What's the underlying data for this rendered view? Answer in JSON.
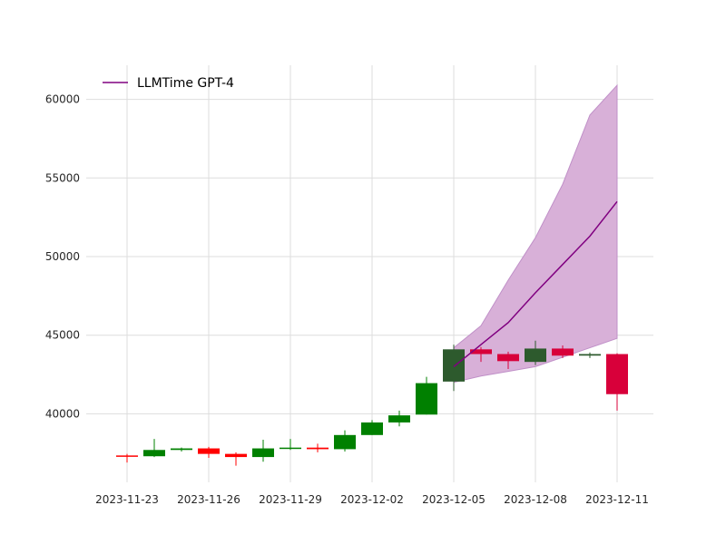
{
  "chart_data": {
    "type": "candlestick",
    "x_ticks": [
      "2023-11-23",
      "2023-11-26",
      "2023-11-29",
      "2023-12-02",
      "2023-12-05",
      "2023-12-08",
      "2023-12-11"
    ],
    "y_ticks": [
      "40000",
      "45000",
      "50000",
      "55000",
      "60000"
    ],
    "ylim": [
      35800,
      62200
    ],
    "xlim": [
      "2023-11-22",
      "2023-12-12"
    ],
    "grid": true,
    "legend_position": "top-left",
    "candles": [
      {
        "date": "2023-11-23",
        "open": 37350,
        "high": 37450,
        "low": 36900,
        "close": 37300
      },
      {
        "date": "2023-11-24",
        "open": 37300,
        "high": 38400,
        "low": 37250,
        "close": 37700
      },
      {
        "date": "2023-11-25",
        "open": 37700,
        "high": 37850,
        "low": 37600,
        "close": 37800
      },
      {
        "date": "2023-11-26",
        "open": 37800,
        "high": 37900,
        "low": 37200,
        "close": 37450
      },
      {
        "date": "2023-11-27",
        "open": 37450,
        "high": 37550,
        "low": 36700,
        "close": 37250
      },
      {
        "date": "2023-11-28",
        "open": 37250,
        "high": 38350,
        "low": 36950,
        "close": 37800
      },
      {
        "date": "2023-11-29",
        "open": 37800,
        "high": 38400,
        "low": 37700,
        "close": 37850
      },
      {
        "date": "2023-11-30",
        "open": 37850,
        "high": 38100,
        "low": 37550,
        "close": 37750
      },
      {
        "date": "2023-12-01",
        "open": 37750,
        "high": 38950,
        "low": 37600,
        "close": 38650
      },
      {
        "date": "2023-12-02",
        "open": 38650,
        "high": 39600,
        "low": 38650,
        "close": 39450
      },
      {
        "date": "2023-12-03",
        "open": 39450,
        "high": 40200,
        "low": 39200,
        "close": 39900
      },
      {
        "date": "2023-12-04",
        "open": 39950,
        "high": 42350,
        "low": 39950,
        "close": 41950
      },
      {
        "date": "2023-12-05",
        "open": 42050,
        "high": 44400,
        "low": 41450,
        "close": 44100
      },
      {
        "date": "2023-12-06",
        "open": 44100,
        "high": 44250,
        "low": 43300,
        "close": 43800
      },
      {
        "date": "2023-12-07",
        "open": 43800,
        "high": 43950,
        "low": 42850,
        "close": 43350
      },
      {
        "date": "2023-12-08",
        "open": 43300,
        "high": 44650,
        "low": 43100,
        "close": 44150
      },
      {
        "date": "2023-12-09",
        "open": 44150,
        "high": 44350,
        "low": 43550,
        "close": 43700
      },
      {
        "date": "2023-12-10",
        "open": 43700,
        "high": 43900,
        "low": 43550,
        "close": 43800
      },
      {
        "date": "2023-12-11",
        "open": 43800,
        "high": 43850,
        "low": 40200,
        "close": 41250
      }
    ],
    "overlap_start": "2023-12-05",
    "forecast": {
      "name": "LLMTime GPT-4",
      "dates": [
        "2023-12-05",
        "2023-12-06",
        "2023-12-07",
        "2023-12-08",
        "2023-12-09",
        "2023-12-10",
        "2023-12-11"
      ],
      "median": [
        43000,
        44400,
        45800,
        47700,
        49500,
        51300,
        53500
      ],
      "lower": [
        42000,
        42400,
        42700,
        43000,
        43600,
        44200,
        44800
      ],
      "upper": [
        44200,
        45600,
        48500,
        51200,
        54600,
        59000,
        60900
      ]
    },
    "colors": {
      "up": "#008000",
      "down": "#ff0000",
      "up_overlap": "#2d5a2d",
      "down_overlap": "#d8003a",
      "forecast_line": "#800080",
      "forecast_band": "#d8b0d8",
      "forecast_band_edge": "#c090c8",
      "grid": "#dddddd"
    }
  }
}
